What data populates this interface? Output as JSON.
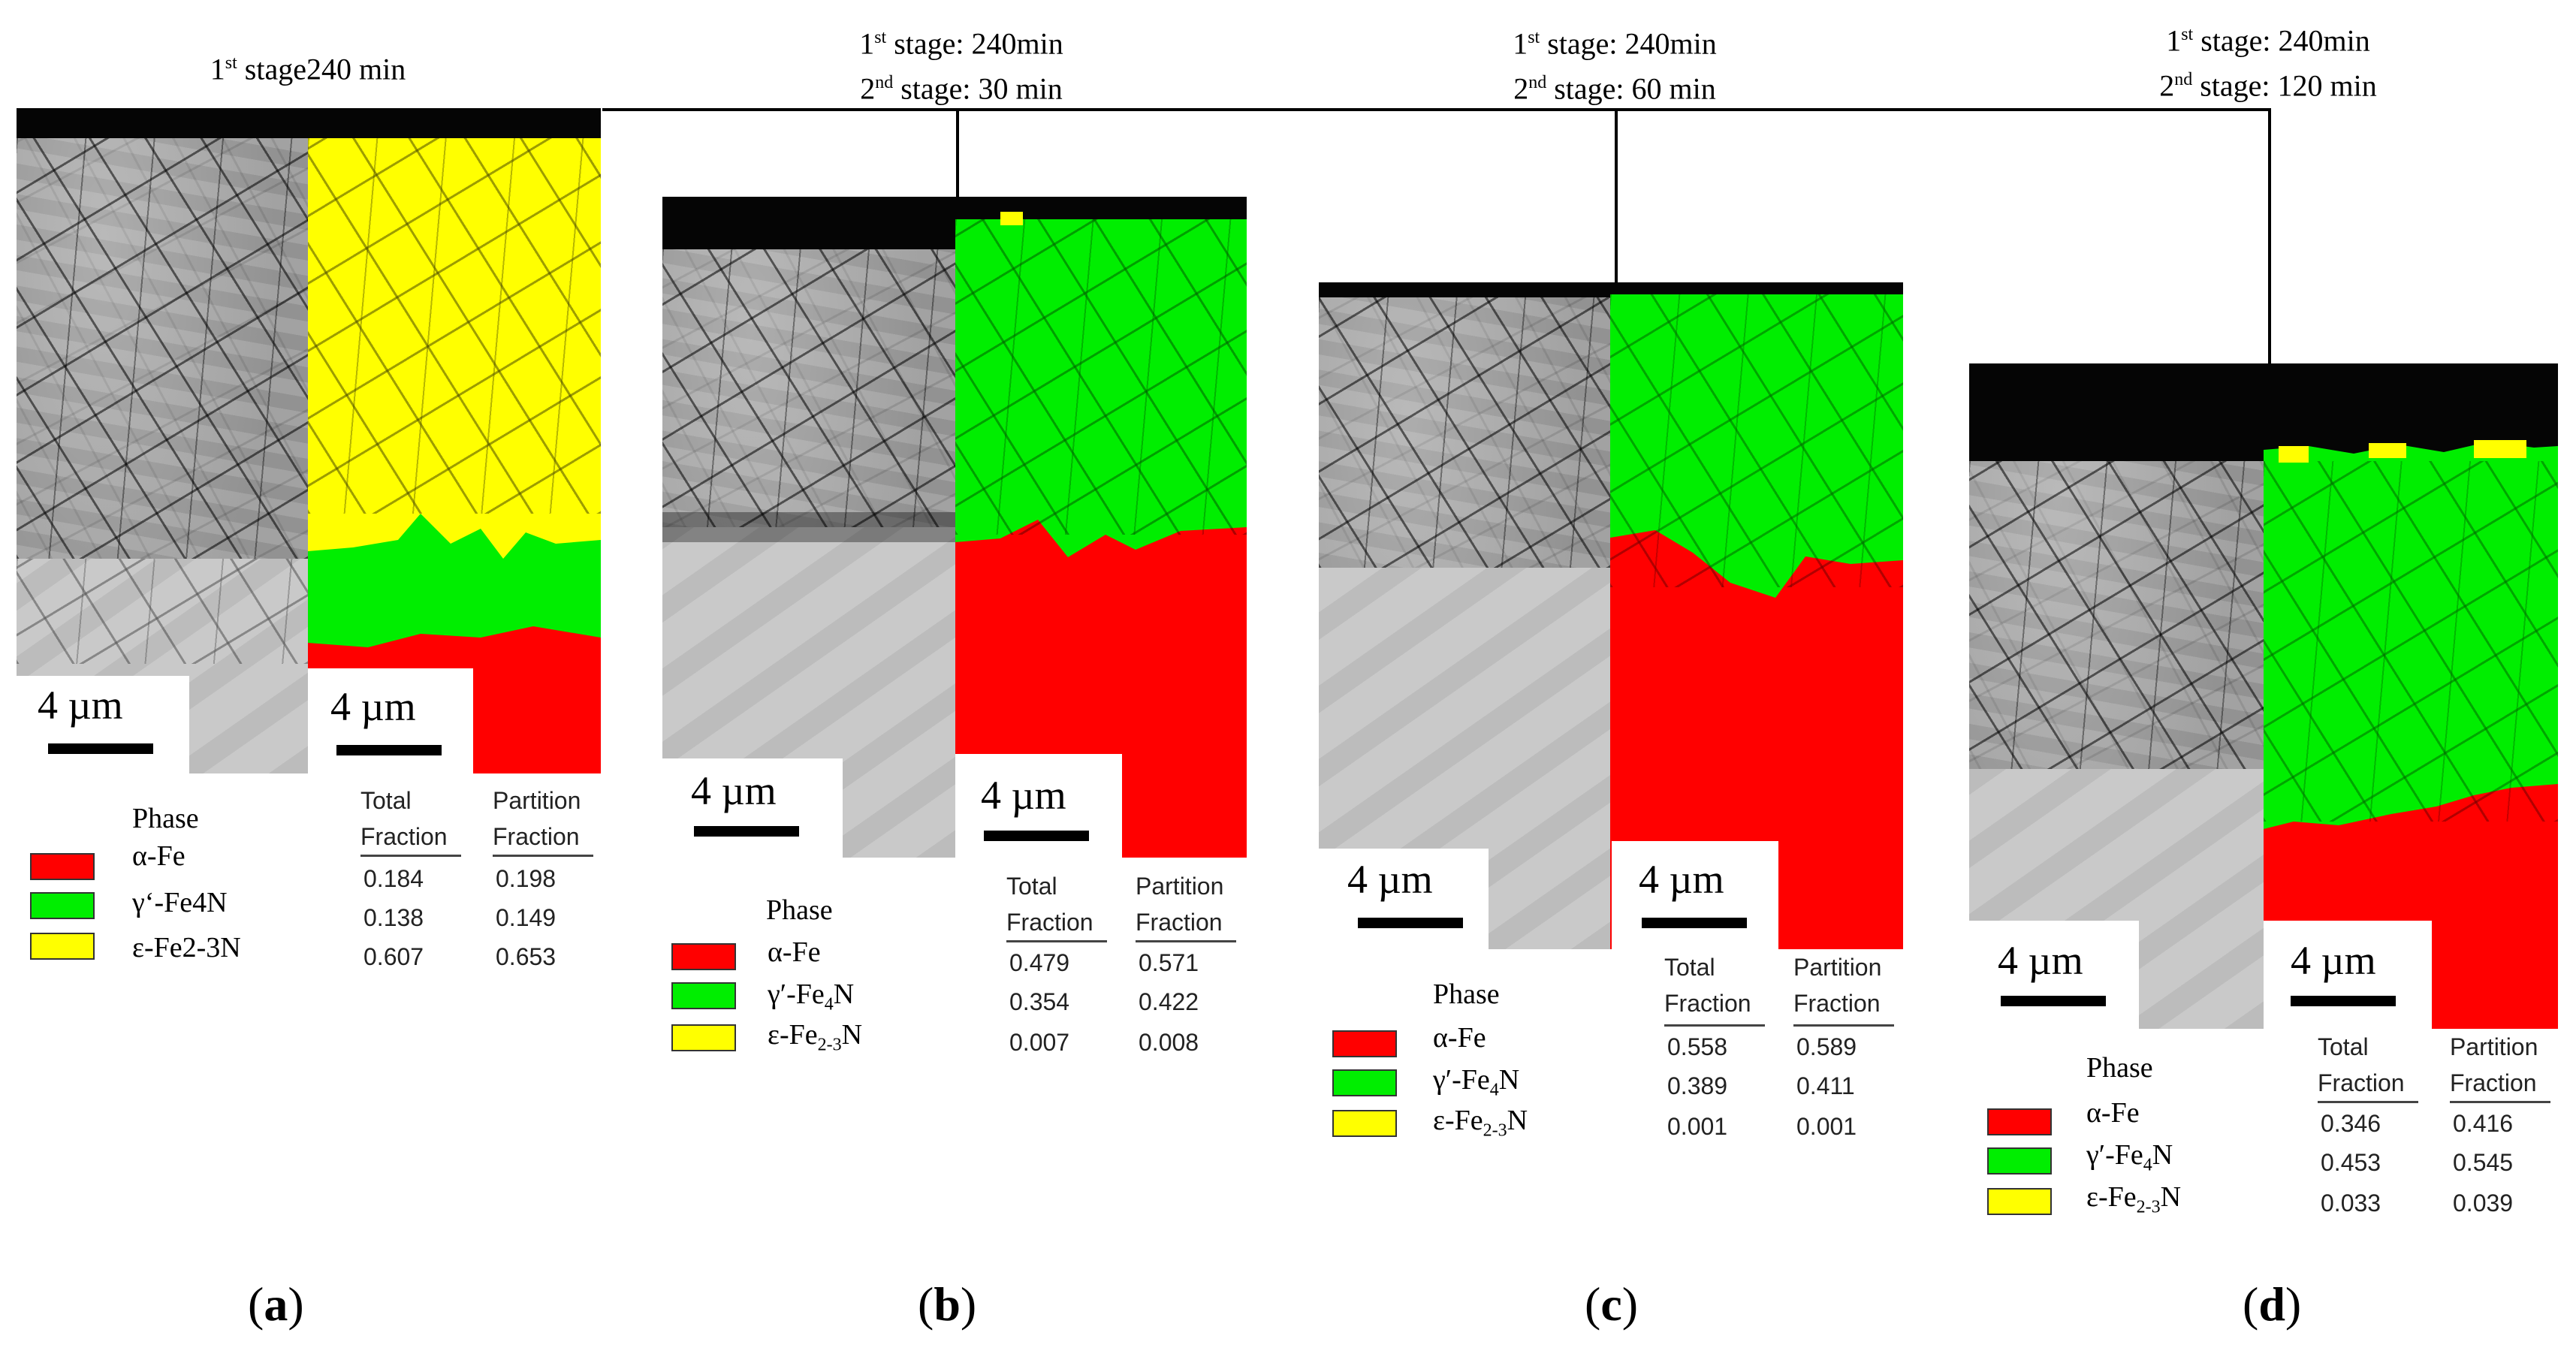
{
  "headers": [
    {
      "s1": "1",
      "s1_sup": "st",
      "s1_text": " stage240 min"
    },
    {
      "s1": "1",
      "s1_sup": "st",
      "s1_text": " stage: 240min",
      "s2": "2",
      "s2_sup": "nd",
      "s2_text": " stage: 30 min"
    },
    {
      "s1": "1",
      "s1_sup": "st",
      "s1_text": " stage: 240min",
      "s2": "2",
      "s2_sup": "nd",
      "s2_text": " stage: 60 min"
    },
    {
      "s1": "1",
      "s1_sup": "st",
      "s1_text": " stage: 240min",
      "s2": "2",
      "s2_sup": "nd",
      "s2_text": " stage: 120 min"
    }
  ],
  "scale_bar": "4 µm",
  "table_headers": {
    "total": "Total Fraction",
    "total_l1": "Total",
    "total_l2": "Fraction",
    "partition_l1": "Partition",
    "partition_l2": "Fraction"
  },
  "legend_title": "Phase",
  "phase_colors": {
    "alpha": "#ff0000",
    "gamma": "#00ee00",
    "epsilon": "#ffff00"
  },
  "panels": [
    {
      "label_open": "(",
      "label": "a",
      "label_close": ")",
      "phases": [
        {
          "name": "α-Fe",
          "sub": "",
          "total": "0.184",
          "partition": "0.198"
        },
        {
          "name": "γ‘-Fe4N",
          "sub": "",
          "total": "0.138",
          "partition": "0.149"
        },
        {
          "name": "ε-Fe2-3N",
          "sub": "",
          "total": "0.607",
          "partition": "0.653"
        }
      ]
    },
    {
      "label_open": "(",
      "label": "b",
      "label_close": ")",
      "phases": [
        {
          "name": "α-Fe",
          "total": "0.479",
          "partition": "0.571"
        },
        {
          "name_a": "γ′-Fe",
          "name_sub": "4",
          "name_b": "N",
          "total": "0.354",
          "partition": "0.422"
        },
        {
          "name_a": "ε-Fe",
          "name_sub": "2-3",
          "name_b": "N",
          "total": "0.007",
          "partition": "0.008"
        }
      ]
    },
    {
      "label_open": "(",
      "label": "c",
      "label_close": ")",
      "phases": [
        {
          "name": "α-Fe",
          "total": "0.558",
          "partition": "0.589"
        },
        {
          "name_a": "γ′-Fe",
          "name_sub": "4",
          "name_b": "N",
          "total": "0.389",
          "partition": "0.411"
        },
        {
          "name_a": "ε-Fe",
          "name_sub": "2-3",
          "name_b": "N",
          "total": "0.001",
          "partition": "0.001"
        }
      ]
    },
    {
      "label_open": "(",
      "label": "d",
      "label_close": ")",
      "phases": [
        {
          "name": "α-Fe",
          "total": "0.346",
          "partition": "0.416"
        },
        {
          "name_a": "γ′-Fe",
          "name_sub": "4",
          "name_b": "N",
          "total": "0.453",
          "partition": "0.545"
        },
        {
          "name_a": "ε-Fe",
          "name_sub": "2-3",
          "name_b": "N",
          "total": "0.033",
          "partition": "0.039"
        }
      ]
    }
  ]
}
